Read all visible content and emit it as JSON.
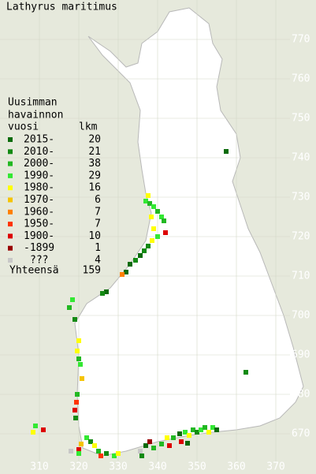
{
  "title": "Lathyrus maritimus",
  "legend": {
    "heading": [
      "Uusimman",
      "havainnon",
      "vuosi"
    ],
    "count_heading": "lkm",
    "rows": [
      {
        "label": "2015-",
        "count": 20,
        "color": "#0b6b0b"
      },
      {
        "label": "2010-",
        "count": 21,
        "color": "#138a13"
      },
      {
        "label": "2000-",
        "count": 38,
        "color": "#22b822"
      },
      {
        "label": "1990-",
        "count": 29,
        "color": "#33e833"
      },
      {
        "label": "1980-",
        "count": 16,
        "color": "#ffff00"
      },
      {
        "label": "1970-",
        "count": 6,
        "color": "#f5c400"
      },
      {
        "label": "1960-",
        "count": 7,
        "color": "#ff7f00"
      },
      {
        "label": "1950-",
        "count": 7,
        "color": "#ff3300"
      },
      {
        "label": "1900-",
        "count": 10,
        "color": "#dd0000"
      },
      {
        "label": "-1899",
        "count": 1,
        "color": "#990000"
      },
      {
        "label": "???",
        "count": 4,
        "color": "#c8c8c8"
      }
    ],
    "total_label": "Yhteensä",
    "total": 159
  },
  "map": {
    "xticks": [
      310,
      320,
      330,
      340,
      350,
      360,
      370
    ],
    "yticks": [
      770,
      760,
      750,
      740,
      730,
      720,
      710,
      700,
      690,
      680,
      670
    ],
    "cells": [
      [
        357.4,
        741.6,
        0
      ],
      [
        362.4,
        685.6,
        1
      ],
      [
        337.6,
        730.4,
        4
      ],
      [
        337,
        729,
        3
      ],
      [
        338,
        728.4,
        2
      ],
      [
        339,
        727.6,
        3
      ],
      [
        340,
        726.4,
        2
      ],
      [
        341,
        725,
        3
      ],
      [
        341.6,
        724,
        2
      ],
      [
        338.4,
        725,
        4
      ],
      [
        339,
        722,
        4
      ],
      [
        342,
        721,
        8
      ],
      [
        340,
        720,
        3
      ],
      [
        338.6,
        719,
        4
      ],
      [
        337.6,
        717.6,
        1
      ],
      [
        336.6,
        716.4,
        1
      ],
      [
        335.6,
        715.2,
        0
      ],
      [
        334.4,
        714,
        1
      ],
      [
        333,
        713,
        0
      ],
      [
        332,
        711,
        0
      ],
      [
        331,
        710.4,
        6
      ],
      [
        327,
        706,
        0
      ],
      [
        326,
        705.6,
        1
      ],
      [
        318.4,
        704,
        3
      ],
      [
        317.6,
        702,
        2
      ],
      [
        319,
        699,
        1
      ],
      [
        320,
        693.6,
        4
      ],
      [
        319.6,
        691,
        4
      ],
      [
        320,
        689,
        2
      ],
      [
        320.4,
        687.6,
        3
      ],
      [
        320.8,
        684,
        5
      ],
      [
        319.6,
        680,
        2
      ],
      [
        319.4,
        678,
        7
      ],
      [
        319,
        676,
        8
      ],
      [
        319.2,
        674,
        1
      ],
      [
        309,
        672,
        3
      ],
      [
        308.4,
        670.4,
        4
      ],
      [
        311,
        671,
        8
      ],
      [
        322,
        669,
        3
      ],
      [
        323,
        668,
        1
      ],
      [
        324,
        667,
        4
      ],
      [
        325,
        665.6,
        2
      ],
      [
        325.6,
        664.4,
        7
      ],
      [
        327,
        665,
        1
      ],
      [
        329,
        664.4,
        3
      ],
      [
        330,
        665,
        4
      ],
      [
        320,
        666,
        8
      ],
      [
        320.6,
        667.4,
        5
      ],
      [
        320,
        665,
        3
      ],
      [
        318,
        665.6,
        10
      ],
      [
        335.6,
        665.6,
        10
      ],
      [
        337,
        667,
        0
      ],
      [
        338,
        668,
        9
      ],
      [
        339,
        666.4,
        2
      ],
      [
        341,
        667.4,
        2
      ],
      [
        342.4,
        669,
        4
      ],
      [
        343,
        667,
        8
      ],
      [
        344,
        669,
        2
      ],
      [
        345.6,
        670,
        0
      ],
      [
        347,
        670.4,
        3
      ],
      [
        348,
        669.6,
        4
      ],
      [
        349,
        671,
        2
      ],
      [
        350,
        670.4,
        1
      ],
      [
        351,
        671,
        3
      ],
      [
        352,
        671.6,
        2
      ],
      [
        353,
        670.4,
        4
      ],
      [
        354,
        671.6,
        3
      ],
      [
        355,
        671,
        0
      ],
      [
        346,
        668,
        8
      ],
      [
        347.6,
        667.6,
        0
      ],
      [
        336,
        664.4,
        1
      ]
    ]
  }
}
